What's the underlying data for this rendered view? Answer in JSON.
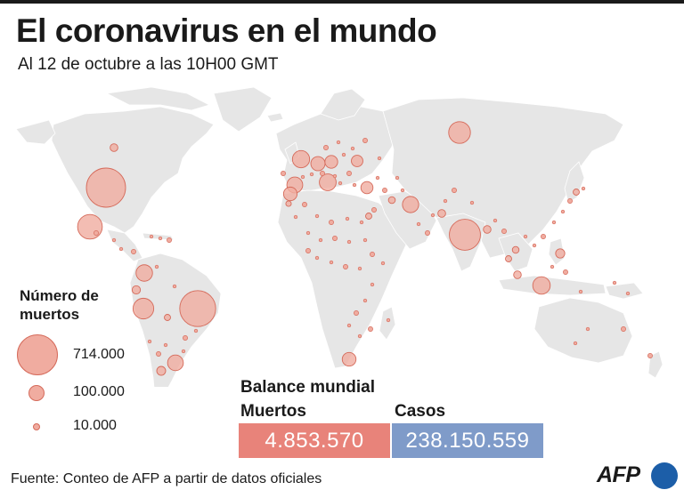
{
  "title": "El coronavirus en el mundo",
  "subtitle": "Al 12 de octubre a las 10H00 GMT",
  "legend": {
    "title": "Número de muertos",
    "items": [
      {
        "label": "714.000",
        "value": 714000
      },
      {
        "label": "100.000",
        "value": 100000
      },
      {
        "label": "10.000",
        "value": 10000
      }
    ]
  },
  "balance": {
    "title": "Balance mundial",
    "deaths_label": "Muertos",
    "deaths_value": "4.853.570",
    "cases_label": "Casos",
    "cases_value": "238.150.559"
  },
  "source": "Fuente: Conteo de AFP a partir de datos oficiales",
  "logo": "AFP",
  "colors": {
    "land": "#e6e6e6",
    "border": "#ffffff",
    "bubble_fill": "#f0aca0",
    "bubble_stroke": "#d56a5a",
    "deaths_box": "#e8837a",
    "cases_box": "#7f9bc9",
    "afp_blue": "#1c5ea8"
  },
  "bubbles": [
    {
      "place": "Estados Unidos",
      "value": 714000
    },
    {
      "place": "Brasil",
      "value": 601000
    },
    {
      "place": "India",
      "value": 450000
    },
    {
      "place": "México",
      "value": 283000
    },
    {
      "place": "Rusia",
      "value": 220000
    },
    {
      "place": "Perú",
      "value": 199000
    },
    {
      "place": "Indonesia",
      "value": 142000
    },
    {
      "place": "Reino Unido",
      "value": 138000
    },
    {
      "place": "Italia",
      "value": 131000
    },
    {
      "place": "Colombia",
      "value": 126000
    },
    {
      "place": "Irán",
      "value": 123000
    },
    {
      "place": "Argentina",
      "value": 115000
    },
    {
      "place": "Francia",
      "value": 117000
    },
    {
      "place": "Alemania",
      "value": 94000
    },
    {
      "place": "Sudáfrica",
      "value": 88000
    },
    {
      "place": "España",
      "value": 86000
    },
    {
      "place": "Polonia",
      "value": 76000
    },
    {
      "place": "Ucrania",
      "value": 62000
    },
    {
      "place": "Turquía",
      "value": 68000
    },
    {
      "place": "Filipinas",
      "value": 39000
    },
    {
      "place": "Chile",
      "value": 37000
    },
    {
      "place": "Canadá",
      "value": 28000
    },
    {
      "place": "Ecuador",
      "value": 32000
    },
    {
      "place": "Egipto",
      "value": 18000
    },
    {
      "place": "Pakistán",
      "value": 28000
    },
    {
      "place": "Bangladés",
      "value": 27000
    },
    {
      "place": "Malasia",
      "value": 27000
    },
    {
      "place": "Japón",
      "value": 18000
    },
    {
      "place": "Irak",
      "value": 22000
    },
    {
      "place": "Marruecos",
      "value": 14000
    },
    {
      "place": "Bolivia",
      "value": 18000
    },
    {
      "place": "Vietnam",
      "value": 21000
    },
    {
      "place": "Tailandia",
      "value": 18000
    }
  ]
}
